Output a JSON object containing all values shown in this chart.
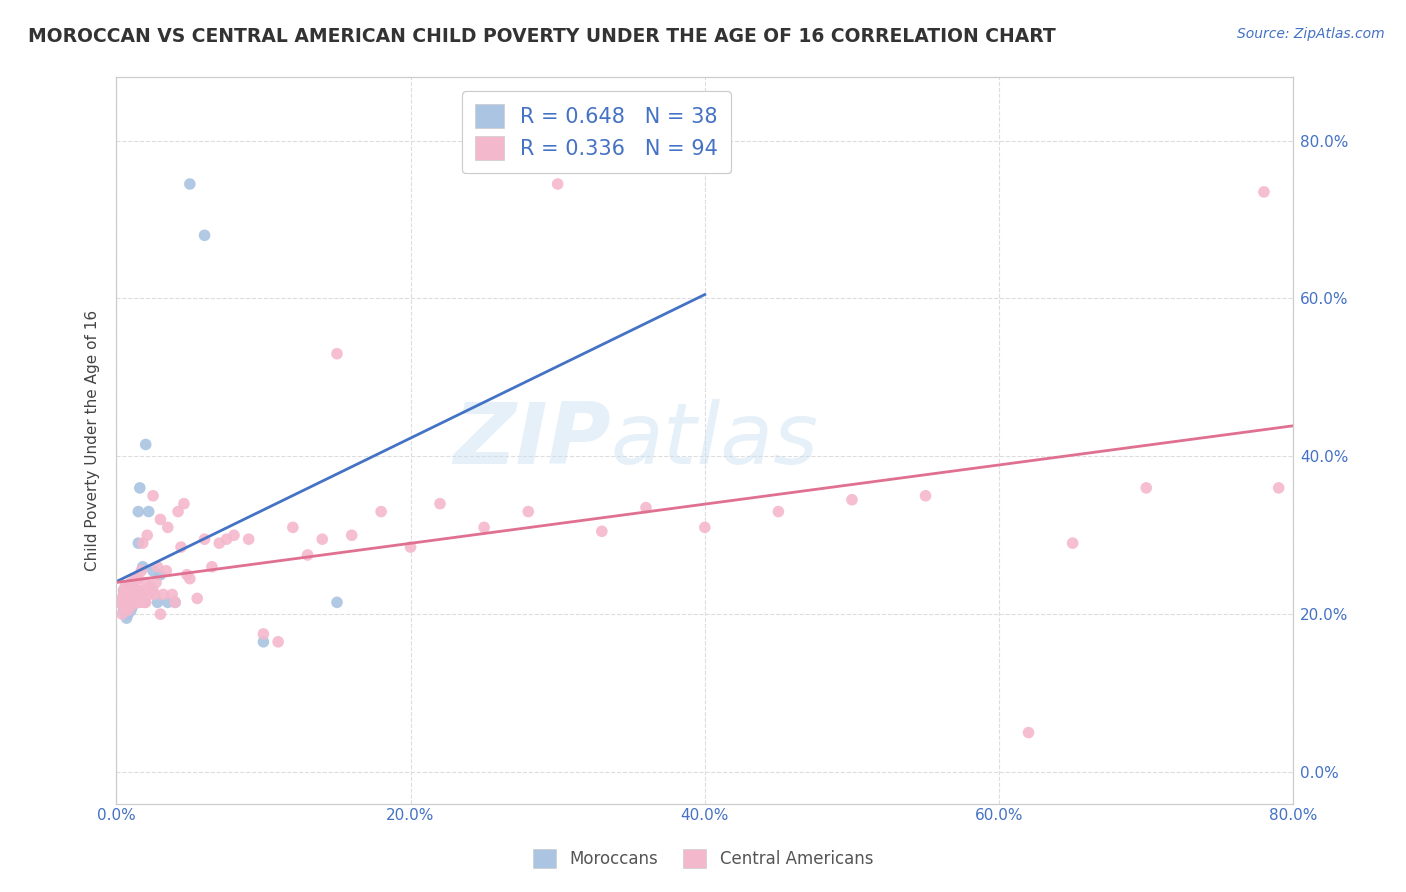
{
  "title": "MOROCCAN VS CENTRAL AMERICAN CHILD POVERTY UNDER THE AGE OF 16 CORRELATION CHART",
  "source": "Source: ZipAtlas.com",
  "ylabel": "Child Poverty Under the Age of 16",
  "xlim": [
    0.0,
    0.8
  ],
  "ylim": [
    -0.04,
    0.88
  ],
  "xticks": [
    0.0,
    0.2,
    0.4,
    0.6,
    0.8
  ],
  "yticks": [
    0.0,
    0.2,
    0.4,
    0.6,
    0.8
  ],
  "background_color": "#ffffff",
  "watermark_zip": "ZIP",
  "watermark_atlas": "atlas",
  "moroccan_color": "#aac4e2",
  "moroccan_line_color": "#4472c4",
  "central_american_color": "#f4b8cc",
  "central_american_line_color": "#e07090",
  "moroccan_R": 0.648,
  "moroccan_N": 38,
  "central_american_R": 0.336,
  "central_american_N": 94,
  "moroccan_x": [
    0.005,
    0.005,
    0.005,
    0.005,
    0.005,
    0.006,
    0.006,
    0.007,
    0.007,
    0.007,
    0.008,
    0.008,
    0.008,
    0.009,
    0.009,
    0.01,
    0.01,
    0.01,
    0.011,
    0.011,
    0.012,
    0.012,
    0.013,
    0.015,
    0.015,
    0.016,
    0.018,
    0.02,
    0.022,
    0.025,
    0.028,
    0.03,
    0.035,
    0.04,
    0.05,
    0.06,
    0.1,
    0.15
  ],
  "moroccan_y": [
    0.205,
    0.21,
    0.215,
    0.225,
    0.23,
    0.2,
    0.215,
    0.195,
    0.21,
    0.22,
    0.2,
    0.215,
    0.225,
    0.21,
    0.22,
    0.205,
    0.215,
    0.225,
    0.21,
    0.23,
    0.215,
    0.225,
    0.245,
    0.29,
    0.33,
    0.36,
    0.26,
    0.415,
    0.33,
    0.255,
    0.215,
    0.25,
    0.215,
    0.215,
    0.745,
    0.68,
    0.165,
    0.215
  ],
  "central_american_x": [
    0.002,
    0.003,
    0.004,
    0.004,
    0.005,
    0.005,
    0.005,
    0.006,
    0.006,
    0.006,
    0.007,
    0.007,
    0.007,
    0.008,
    0.008,
    0.008,
    0.008,
    0.009,
    0.009,
    0.009,
    0.01,
    0.01,
    0.01,
    0.01,
    0.011,
    0.011,
    0.012,
    0.012,
    0.013,
    0.013,
    0.014,
    0.015,
    0.015,
    0.015,
    0.016,
    0.016,
    0.017,
    0.017,
    0.018,
    0.018,
    0.019,
    0.02,
    0.02,
    0.021,
    0.022,
    0.023,
    0.025,
    0.025,
    0.026,
    0.027,
    0.028,
    0.03,
    0.03,
    0.032,
    0.034,
    0.035,
    0.038,
    0.04,
    0.042,
    0.044,
    0.046,
    0.048,
    0.05,
    0.055,
    0.06,
    0.065,
    0.07,
    0.075,
    0.08,
    0.09,
    0.1,
    0.11,
    0.12,
    0.13,
    0.14,
    0.15,
    0.16,
    0.18,
    0.2,
    0.22,
    0.25,
    0.28,
    0.3,
    0.33,
    0.36,
    0.4,
    0.45,
    0.5,
    0.55,
    0.62,
    0.65,
    0.7,
    0.78,
    0.79
  ],
  "central_american_y": [
    0.215,
    0.215,
    0.2,
    0.22,
    0.21,
    0.225,
    0.23,
    0.215,
    0.225,
    0.235,
    0.21,
    0.22,
    0.23,
    0.205,
    0.215,
    0.225,
    0.235,
    0.215,
    0.22,
    0.235,
    0.21,
    0.22,
    0.225,
    0.24,
    0.22,
    0.235,
    0.225,
    0.24,
    0.23,
    0.245,
    0.215,
    0.215,
    0.23,
    0.245,
    0.215,
    0.23,
    0.22,
    0.255,
    0.225,
    0.29,
    0.215,
    0.215,
    0.24,
    0.3,
    0.225,
    0.235,
    0.23,
    0.35,
    0.225,
    0.24,
    0.26,
    0.2,
    0.32,
    0.225,
    0.255,
    0.31,
    0.225,
    0.215,
    0.33,
    0.285,
    0.34,
    0.25,
    0.245,
    0.22,
    0.295,
    0.26,
    0.29,
    0.295,
    0.3,
    0.295,
    0.175,
    0.165,
    0.31,
    0.275,
    0.295,
    0.53,
    0.3,
    0.33,
    0.285,
    0.34,
    0.31,
    0.33,
    0.745,
    0.305,
    0.335,
    0.31,
    0.33,
    0.345,
    0.35,
    0.05,
    0.29,
    0.36,
    0.735,
    0.36
  ],
  "grid_color": "#dddddd",
  "title_fontsize": 13.5,
  "axis_label_fontsize": 11,
  "tick_fontsize": 11,
  "legend_fontsize": 15,
  "source_fontsize": 10,
  "watermark_fontsize_zip": 62,
  "watermark_fontsize_atlas": 62,
  "watermark_color": "#c8dff0",
  "watermark_alpha": 0.45,
  "tick_color": "#4472c4"
}
